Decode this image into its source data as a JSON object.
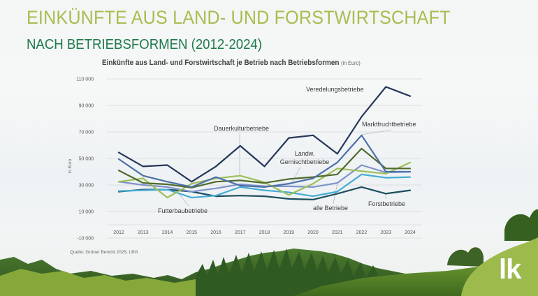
{
  "header": {
    "title": "EINKÜNFTE AUS LAND- UND FORSTWIRTSCHAFT",
    "subtitle": "NACH BETRIEBSFORMEN (2012-2024)"
  },
  "chart_data": {
    "type": "line",
    "title": "Einkünfte aus Land- und Forstwirtschaft je Betrieb nach Betriebsformen",
    "title_unit": "(in Euro)",
    "xlabel": "",
    "ylabel": "in Euro",
    "ylim": [
      -10000,
      110000
    ],
    "yticks": [
      110000,
      90000,
      70000,
      50000,
      30000,
      10000,
      -10000
    ],
    "ytick_labels": [
      "110 000",
      "90 000",
      "70 000",
      "50 000",
      "30 000",
      "10 000",
      "-10 000"
    ],
    "grid": true,
    "x": [
      "2012",
      "2013",
      "2014",
      "2015",
      "2016",
      "2017",
      "2018",
      "2019",
      "2020",
      "2021",
      "2022",
      "2023",
      "2024"
    ],
    "series": [
      {
        "name": "Forstbetriebe",
        "color": "#1d4e5e",
        "values": [
          25000,
          26500,
          26500,
          25000,
          21500,
          22000,
          21500,
          19500,
          19000,
          23500,
          28500,
          23500,
          26000
        ]
      },
      {
        "name": "Futterbaubetriebe",
        "color": "#45acd3",
        "values": [
          25500,
          26000,
          26500,
          20500,
          22000,
          28500,
          26000,
          24500,
          21500,
          25000,
          38000,
          35500,
          36000
        ]
      },
      {
        "name": "alle Betriebe",
        "color": "#7f93cc",
        "values": [
          32500,
          30000,
          28500,
          25000,
          27500,
          30500,
          29000,
          29000,
          28500,
          31500,
          45000,
          39500,
          40000
        ]
      },
      {
        "name": "Dauerkulturbetriebe",
        "color": "#9dc05a",
        "values": [
          32500,
          35000,
          20500,
          31000,
          35000,
          37000,
          32000,
          22500,
          31000,
          42500,
          40500,
          38500,
          47000
        ]
      },
      {
        "name": "Landw. Gemischtbetriebe",
        "color": "#4f6b2c",
        "values": [
          41000,
          31500,
          30500,
          28000,
          32500,
          33500,
          31500,
          34500,
          36000,
          38000,
          57500,
          42500,
          42500
        ]
      },
      {
        "name": "Marktfruchtbetriebe",
        "color": "#4d70a8",
        "values": [
          49500,
          37000,
          32500,
          28500,
          36000,
          29500,
          28500,
          31000,
          35000,
          47000,
          67500,
          40000,
          40000
        ]
      },
      {
        "name": "Veredelungsbetriebe",
        "color": "#26375a",
        "values": [
          54500,
          44000,
          45000,
          32500,
          44000,
          59500,
          44000,
          65500,
          67500,
          53500,
          81500,
          104000,
          97000
        ]
      }
    ],
    "annotations": [
      {
        "text": "Veredelungsbetriebe",
        "target_series": "Veredelungsbetriebe"
      },
      {
        "text": "Marktfruchtbetriebe",
        "target_series": "Marktfruchtbetriebe"
      },
      {
        "text": "Dauerkulturbetriebe",
        "target_series": "Dauerkulturbetriebe"
      },
      {
        "text": "Landw.",
        "text2": "Gemischtbetriebe",
        "target_series": "Landw. Gemischtbetriebe"
      },
      {
        "text": "Futterbaubetriebe",
        "target_series": "Futterbaubetriebe"
      },
      {
        "text": "alle Betriebe",
        "target_series": "alle Betriebe"
      },
      {
        "text": "Forstbetriebe",
        "target_series": "Forstbetriebe"
      }
    ],
    "source": "Quelle: Grüner Bericht 2025, LBG"
  },
  "logo": {
    "text": "lk",
    "color": "#9dba4c"
  }
}
